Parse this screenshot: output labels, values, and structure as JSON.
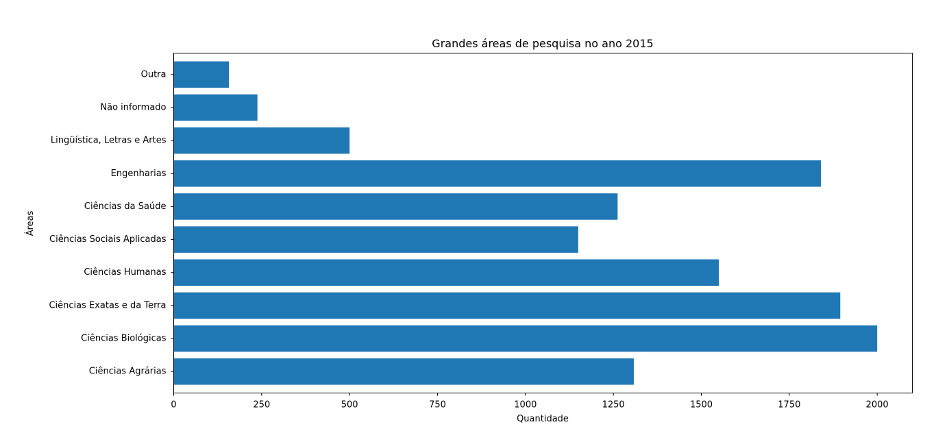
{
  "chart_data": {
    "type": "bar",
    "orientation": "horizontal",
    "title": "Grandes áreas de pesquisa no ano 2015",
    "xlabel": "Quantidade",
    "ylabel": "Áreas",
    "categories": [
      "Ciências Agrárias",
      "Ciências Biológicas",
      "Ciências Exatas e da Terra",
      "Ciências Humanas",
      "Ciências Sociais Aplicadas",
      "Ciências da Saúde",
      "Engenharias",
      "Lingüística, Letras e Artes",
      "Não informado",
      "Outra"
    ],
    "values": [
      1308,
      2000,
      1895,
      1550,
      1150,
      1262,
      1840,
      500,
      238,
      157
    ],
    "xlim": [
      0,
      2100
    ],
    "xticks": [
      0,
      250,
      500,
      750,
      1000,
      1250,
      1500,
      1750,
      2000
    ],
    "bar_color": "#1f77b4",
    "grid": false,
    "legend": "none"
  }
}
